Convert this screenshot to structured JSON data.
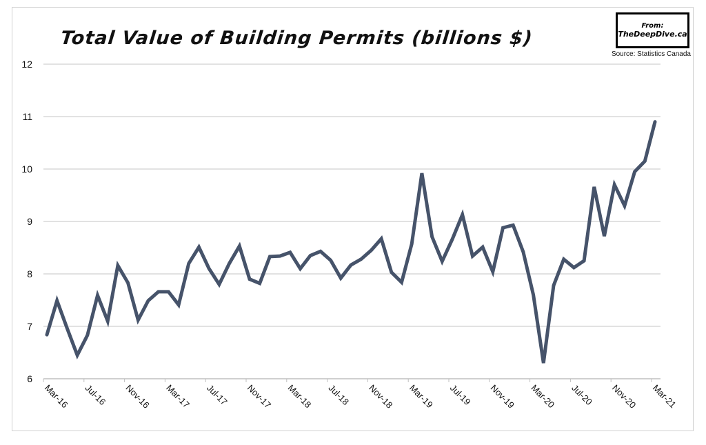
{
  "chart_data": {
    "type": "line",
    "title": "Total Value of Building Permits (billions $)",
    "logo": {
      "line1": "From:",
      "line2": "TheDeepDive.ca"
    },
    "source": "Source: Statistics Canada",
    "xlabel": "",
    "ylabel": "",
    "ylim": [
      6,
      12
    ],
    "yticks": [
      6,
      7,
      8,
      9,
      10,
      11,
      12
    ],
    "grid": true,
    "line_color": "#46536a",
    "xtick_labels": [
      "Mar-16",
      "Jul-16",
      "Nov-16",
      "Mar-17",
      "Jul-17",
      "Nov-17",
      "Mar-18",
      "Jul-18",
      "Nov-18",
      "Mar-19",
      "Jul-19",
      "Nov-19",
      "Mar-20",
      "Jul-20",
      "Nov-20",
      "Mar-21"
    ],
    "x_start": "Mar-16",
    "x_end": "Mar-21",
    "frequency": "monthly",
    "values": [
      6.84,
      7.49,
      6.96,
      6.45,
      6.83,
      7.59,
      7.1,
      8.16,
      7.83,
      7.12,
      7.49,
      7.66,
      7.66,
      7.41,
      8.2,
      8.51,
      8.1,
      7.8,
      8.2,
      8.53,
      7.9,
      7.82,
      8.33,
      8.34,
      8.41,
      8.1,
      8.35,
      8.43,
      8.26,
      7.92,
      8.17,
      8.28,
      8.45,
      8.67,
      8.03,
      7.84,
      8.57,
      9.92,
      8.71,
      8.24,
      8.66,
      9.13,
      8.34,
      8.51,
      8.04,
      8.88,
      8.93,
      8.42,
      7.6,
      6.3,
      7.78,
      8.28,
      8.12,
      8.25,
      9.66,
      8.72,
      9.7,
      9.3,
      9.95,
      10.15,
      10.9
    ]
  }
}
